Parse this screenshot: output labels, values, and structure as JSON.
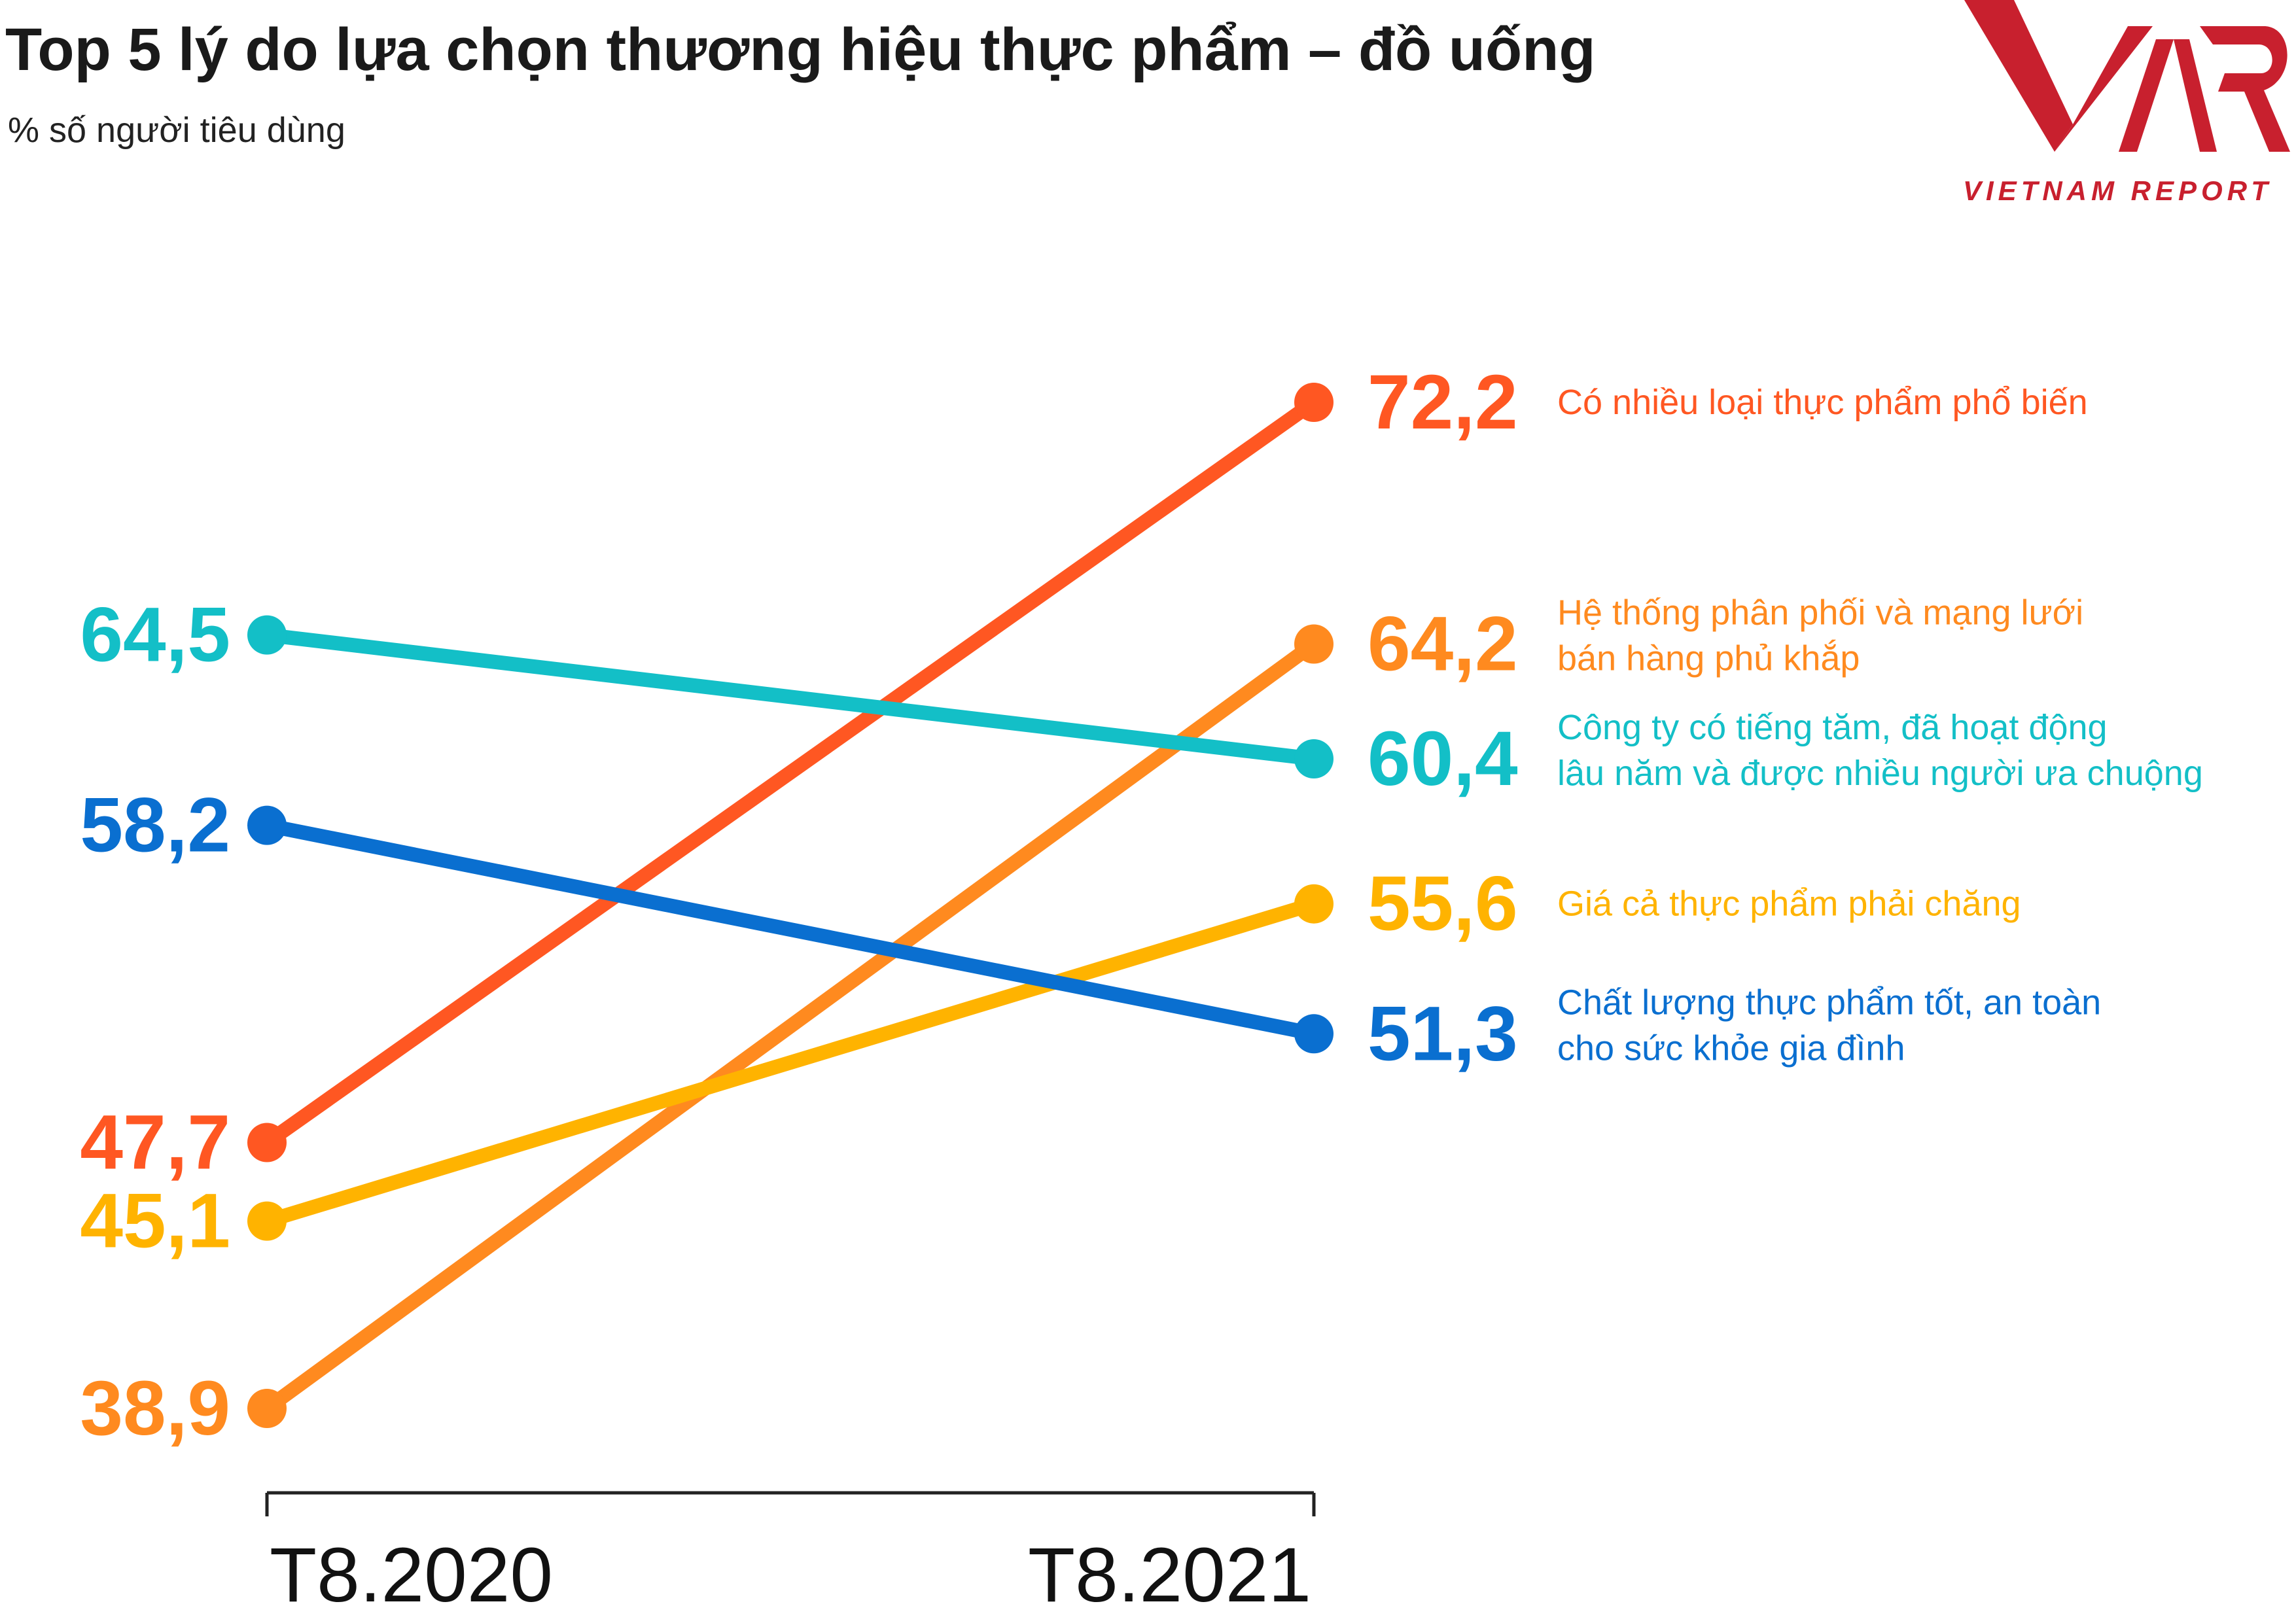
{
  "title": "Top 5 lý do lựa chọn thương hiệu thực phẩm – đồ uống",
  "subtitle": "% số người tiêu dùng",
  "logo": {
    "text": "VIETNAM REPORT",
    "mark": "VNR",
    "color": "#C8202E"
  },
  "chart_data": {
    "type": "line",
    "categories": [
      "T8.2020",
      "T8.2021"
    ],
    "ylim": [
      38.9,
      72.2
    ],
    "grid": false,
    "series": [
      {
        "name": "Có nhiều loại thực phẩm phổ biến",
        "name_lines": [
          "Có nhiều loại thực phẩm phổ biến"
        ],
        "values": [
          47.7,
          72.2
        ],
        "labels": [
          "47,7",
          "72,2"
        ],
        "color": "#FF5722"
      },
      {
        "name": "Hệ thống phân phối và mạng lưới bán hàng phủ khắp",
        "name_lines": [
          "Hệ thống phân phối và mạng lưới",
          "bán hàng phủ khắp"
        ],
        "values": [
          38.9,
          64.2
        ],
        "labels": [
          "38,9",
          "64,2"
        ],
        "color": "#FF8A1F"
      },
      {
        "name": "Công ty có tiếng tăm, đã hoạt động lâu năm và được nhiều người ưa chuộng",
        "name_lines": [
          "Công ty có tiếng tăm, đã hoạt động",
          "lâu năm và được nhiều người ưa chuộng"
        ],
        "values": [
          64.5,
          60.4
        ],
        "labels": [
          "64,5",
          "60,4"
        ],
        "color": "#13BFC7"
      },
      {
        "name": "Giá cả thực phẩm phải chăng",
        "name_lines": [
          "Giá cả thực phẩm phải chăng"
        ],
        "values": [
          45.1,
          55.6
        ],
        "labels": [
          "45,1",
          "55,6"
        ],
        "color": "#FFB300"
      },
      {
        "name": "Chất lượng thực phẩm tốt, an toàn cho sức khỏe gia đình",
        "name_lines": [
          "Chất lượng thực phẩm tốt, an toàn",
          "cho sức khỏe gia đình"
        ],
        "values": [
          58.2,
          51.3
        ],
        "labels": [
          "58,2",
          "51,3"
        ],
        "color": "#0A6FD0"
      }
    ]
  }
}
